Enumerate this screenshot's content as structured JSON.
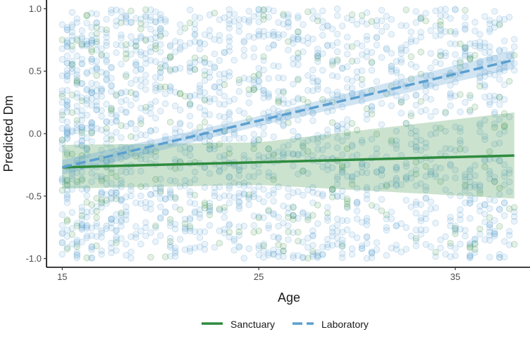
{
  "chart_data": {
    "type": "scatter",
    "xlabel": "Age",
    "ylabel": "Predicted Dm",
    "xlim": [
      14.2,
      38.8
    ],
    "ylim": [
      -1.07,
      1.07
    ],
    "x_ticks": [
      15,
      25,
      35
    ],
    "x_tick_labels": [
      "15",
      "25",
      "35"
    ],
    "y_ticks": [
      -1.0,
      -0.5,
      0.0,
      0.5,
      1.0
    ],
    "y_tick_labels": [
      "-1.0",
      "-0.5",
      "0.0",
      "0.5",
      "1.0"
    ],
    "grid": false,
    "legend_position": "bottom",
    "series": [
      {
        "name": "Sanctuary",
        "color": "#2e8b3e",
        "line_style": "solid",
        "x_range": [
          15,
          38
        ],
        "fit": [
          [
            15,
            -0.27
          ],
          [
            38,
            -0.175
          ]
        ],
        "ci_lower": [
          [
            15,
            -0.44
          ],
          [
            25,
            -0.41
          ],
          [
            38,
            -0.52
          ]
        ],
        "ci_upper": [
          [
            15,
            -0.09
          ],
          [
            25,
            -0.07
          ],
          [
            38,
            0.17
          ]
        ],
        "point_count": 300
      },
      {
        "name": "Laboratory",
        "color": "#5b9fd0",
        "line_style": "dashed",
        "x_range": [
          15,
          38
        ],
        "fit": [
          [
            15,
            -0.27
          ],
          [
            38,
            0.59
          ]
        ],
        "ci_lower": [
          [
            15,
            -0.33
          ],
          [
            25,
            0.06
          ],
          [
            38,
            0.52
          ]
        ],
        "ci_upper": [
          [
            15,
            -0.21
          ],
          [
            25,
            0.14
          ],
          [
            38,
            0.67
          ]
        ],
        "point_count": 1800
      }
    ]
  }
}
